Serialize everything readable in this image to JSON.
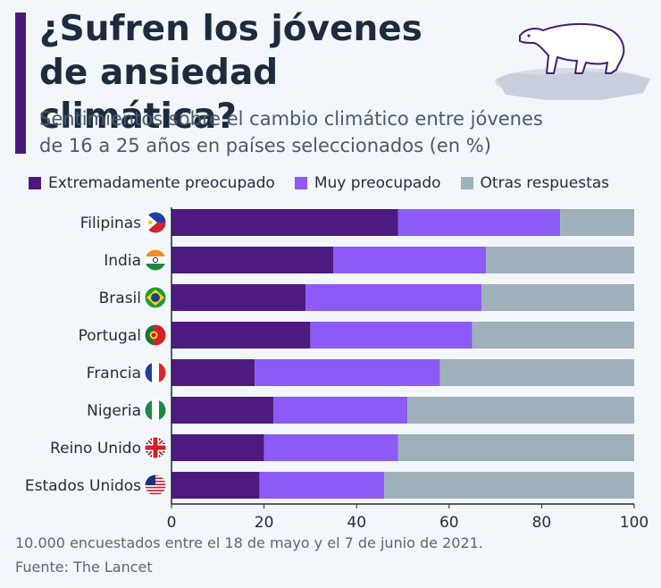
{
  "header": {
    "title_line1": "¿Sufren los jóvenes",
    "title_line2": "de ansiedad climática?",
    "subtitle_line1": "Sentimientos sobre el cambio climático entre jóvenes",
    "subtitle_line2": "de 16 a 25 años en países seleccionados (en %)"
  },
  "footer": {
    "note": "10.000 encuestados entre el 18 de mayo y el 7 de junio de 2021.",
    "source": "Fuente: The Lancet"
  },
  "colors": {
    "extremely": "#4d1a7f",
    "very": "#8c5af5",
    "other": "#9eb0ba",
    "accent": "#4a1a78"
  },
  "chart_data": {
    "type": "bar",
    "orientation": "horizontal",
    "stacked": true,
    "categories": [
      "Filipinas",
      "India",
      "Brasil",
      "Portugal",
      "Francia",
      "Nigeria",
      "Reino Unido",
      "Estados Unidos"
    ],
    "series": [
      {
        "name": "Extremadamente preocupado",
        "color": "#4d1a7f",
        "values": [
          49,
          35,
          29,
          30,
          18,
          22,
          20,
          19
        ]
      },
      {
        "name": "Muy preocupado",
        "color": "#8c5af5",
        "values": [
          35,
          33,
          38,
          35,
          40,
          29,
          29,
          27
        ]
      },
      {
        "name": "Otras respuestas",
        "color": "#9eb0ba",
        "values": [
          16,
          32,
          33,
          35,
          42,
          49,
          51,
          54
        ]
      }
    ],
    "xlim": [
      0,
      100
    ],
    "xticks": [
      "0",
      "20",
      "40",
      "60",
      "80",
      "100"
    ],
    "grid": false,
    "legend": "top"
  }
}
